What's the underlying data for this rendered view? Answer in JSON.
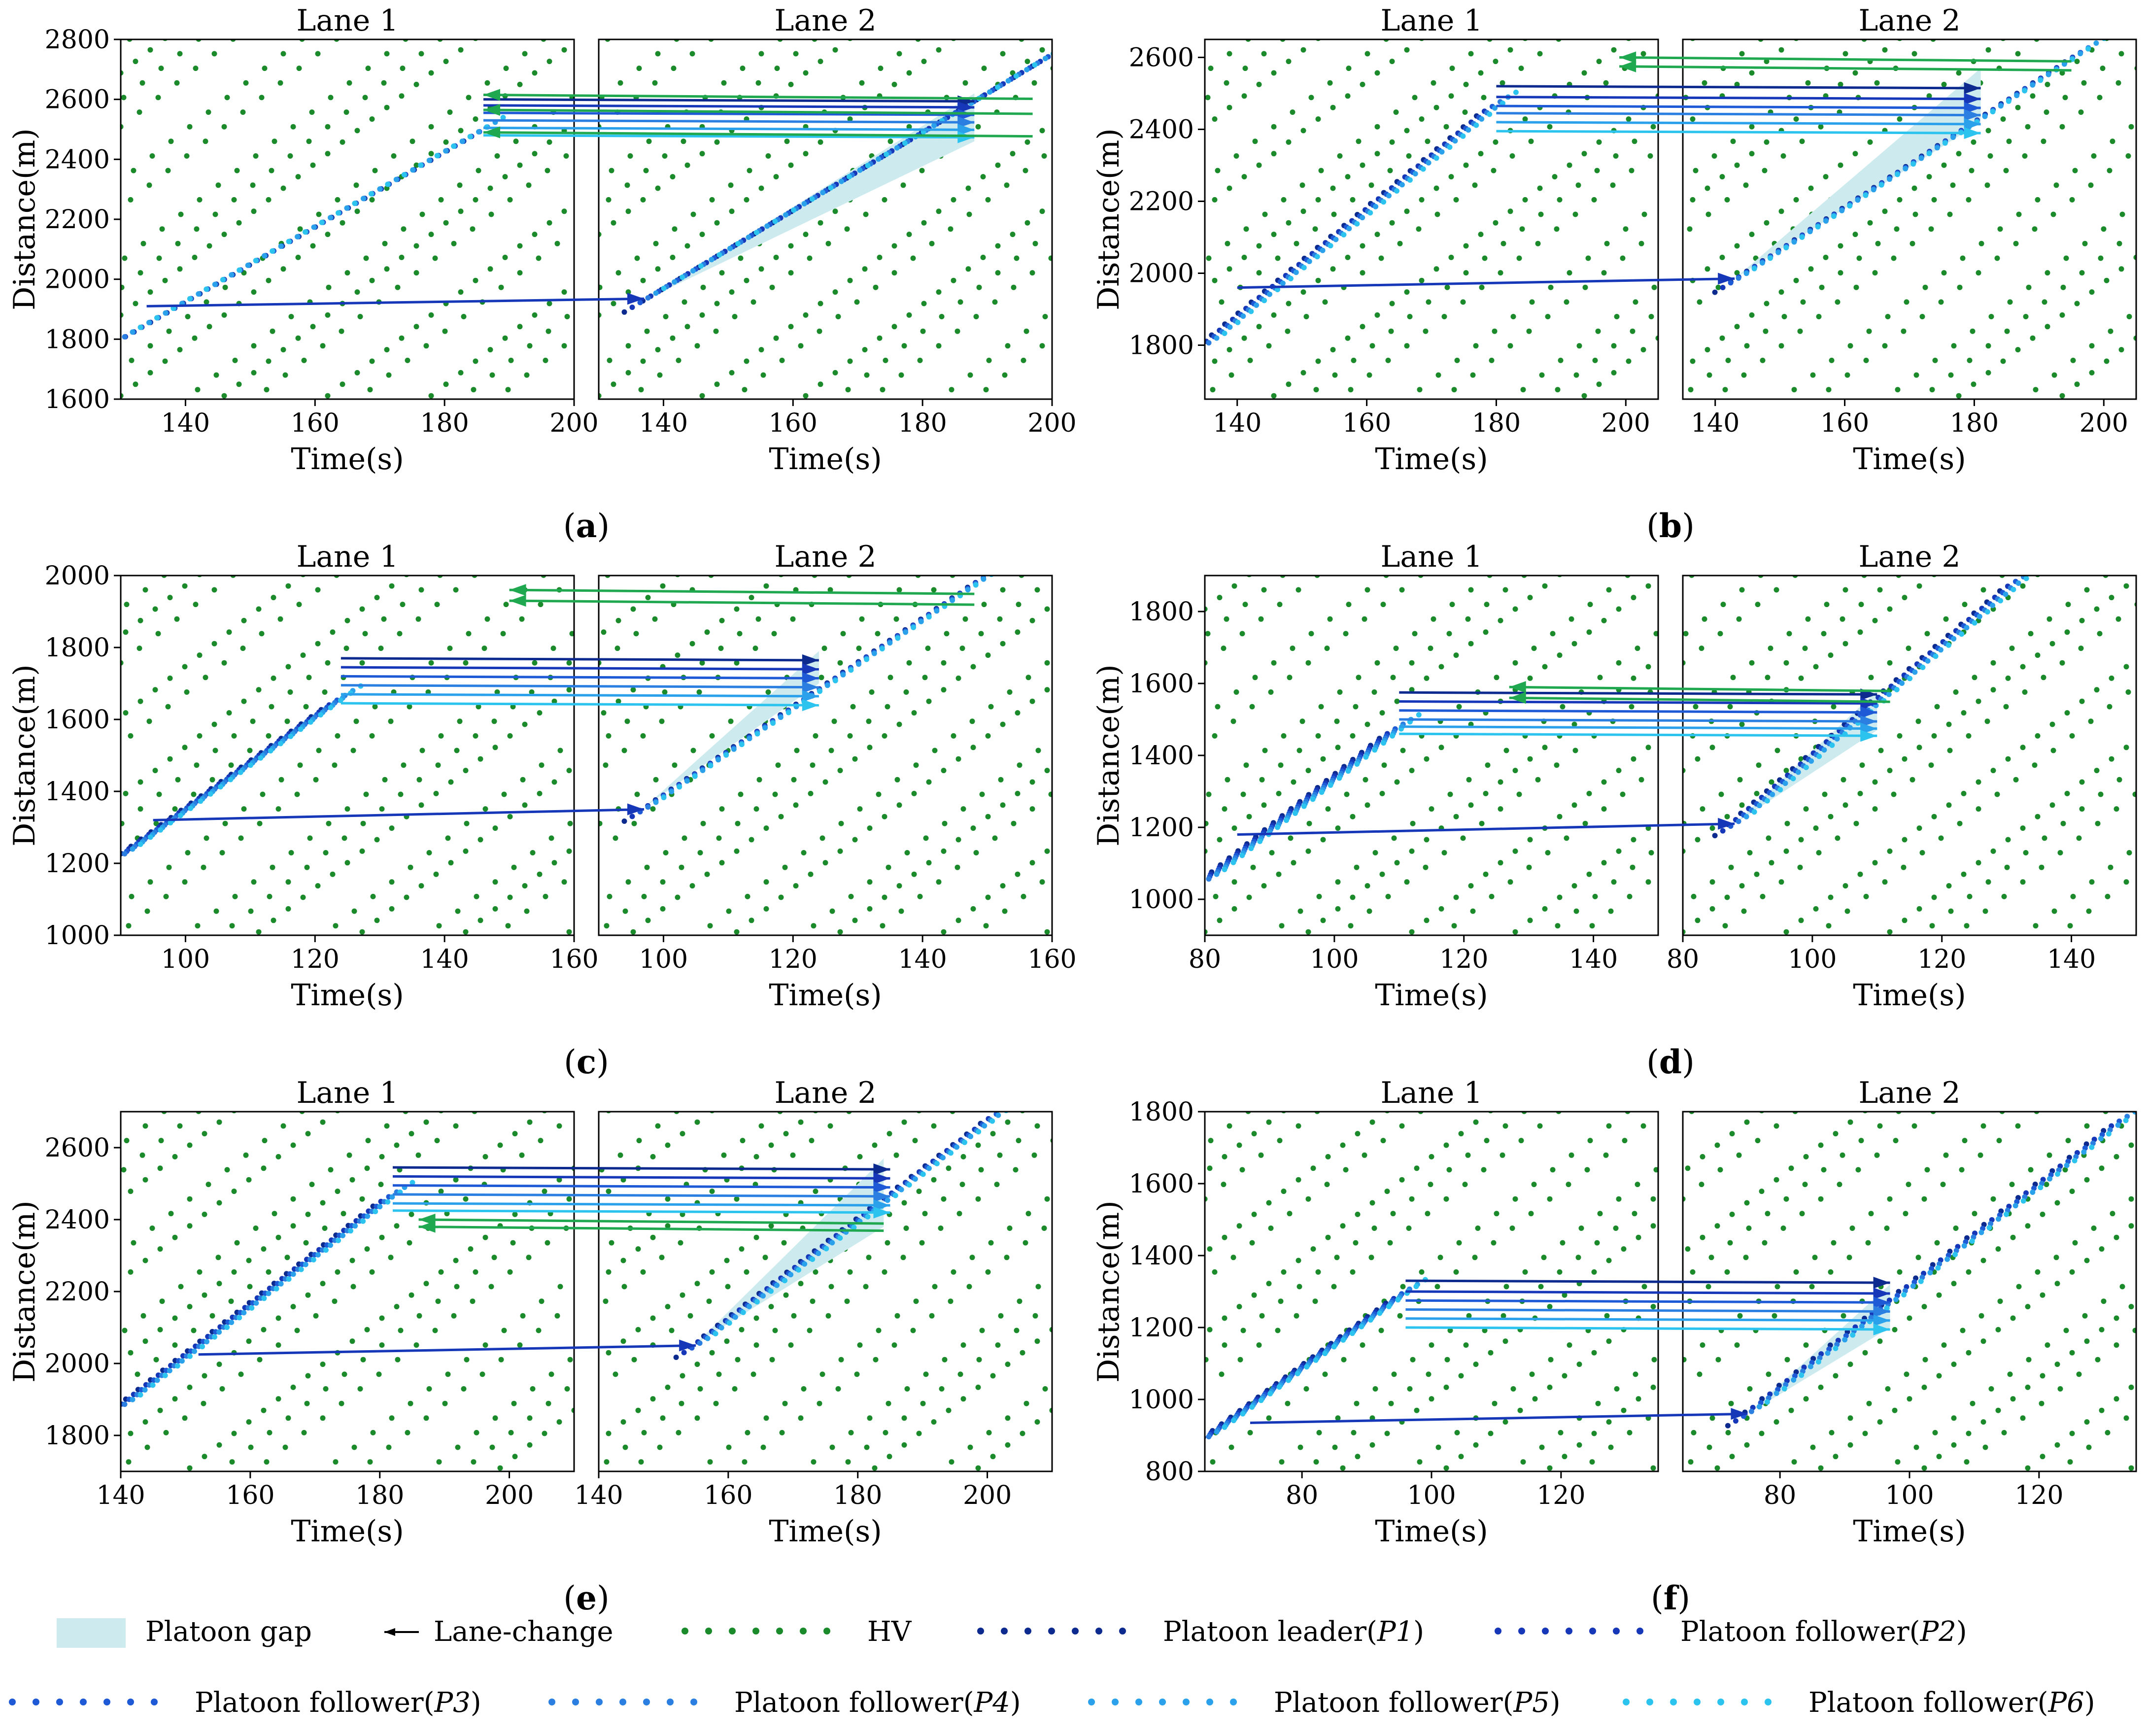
{
  "colors": {
    "hv": "#1a8a2a",
    "p1": "#0d2b8f",
    "p2": "#1537b8",
    "p3": "#1e5ad6",
    "p4": "#2a7fe0",
    "p5": "#2aa1ea",
    "p6": "#2cc4ef",
    "platoon_gap": "#cdebef",
    "lane_change_green": "#1fa84f"
  },
  "legend": [
    {
      "key": "gap",
      "label": "Platoon gap",
      "label_italic": ""
    },
    {
      "key": "lane-change",
      "label": "Lane-change",
      "label_italic": ""
    },
    {
      "key": "hv",
      "label": "HV",
      "label_italic": ""
    },
    {
      "key": "p1",
      "label": "Platoon leader(",
      "label_italic": "P1"
    },
    {
      "key": "p2",
      "label": "Platoon follower(",
      "label_italic": "P2"
    },
    {
      "key": "p3",
      "label": "Platoon follower(",
      "label_italic": "P3"
    },
    {
      "key": "p4",
      "label": "Platoon follower(",
      "label_italic": "P4"
    },
    {
      "key": "p5",
      "label": "Platoon follower(",
      "label_italic": "P5"
    },
    {
      "key": "p6",
      "label": "Platoon follower(",
      "label_italic": "P6"
    }
  ],
  "chart_data": [
    {
      "type": "scatter",
      "letter": "a",
      "ylabel": "Distance(m)",
      "xlabel": "Time(s)",
      "lane_titles": [
        "Lane 1",
        "Lane 2"
      ],
      "ylim": [
        1600,
        2800
      ],
      "yticks": [
        1600,
        1800,
        2000,
        2200,
        2400,
        2600,
        2800
      ],
      "lanes": [
        {
          "xlim": [
            130,
            200
          ],
          "xticks": [
            140,
            160,
            180,
            200
          ]
        },
        {
          "xlim": [
            130,
            200
          ],
          "xticks": [
            140,
            160,
            180,
            200
          ]
        }
      ],
      "platoon": {
        "left": {
          "t": [
            130,
            186
          ],
          "d": [
            1800,
            2500
          ]
        },
        "right": {
          "t": [
            137,
            200
          ],
          "d": [
            1930,
            2750
          ]
        }
      },
      "gap": {
        "t": [
          137,
          188,
          188
        ],
        "d": [
          1930,
          2460,
          2620
        ]
      },
      "pl_lane_change": {
        "t0": 134,
        "d0": 1910,
        "t1": 137,
        "d1": 1935
      },
      "lc_to_lane2": {
        "t0": 186,
        "t1": 188,
        "d": [
          2600,
          2580,
          2555,
          2530,
          2505,
          2480
        ]
      },
      "lc_to_lane1": {
        "t0": 197,
        "t1": 186,
        "d": [
          2615,
          2565,
          2490
        ]
      }
    },
    {
      "type": "scatter",
      "letter": "b",
      "ylabel": "Distance(m)",
      "xlabel": "Time(s)",
      "lane_titles": [
        "Lane 1",
        "Lane 2"
      ],
      "ylim": [
        1650,
        2650
      ],
      "yticks": [
        1800,
        2000,
        2200,
        2400,
        2600
      ],
      "lanes": [
        {
          "xlim": [
            135,
            205
          ],
          "xticks": [
            140,
            160,
            180,
            200
          ]
        },
        {
          "xlim": [
            135,
            205
          ],
          "xticks": [
            140,
            160,
            180,
            200
          ]
        }
      ],
      "platoon": {
        "left": {
          "t": [
            135,
            180
          ],
          "d": [
            1800,
            2470
          ]
        },
        "right": {
          "t": [
            143,
            197
          ],
          "d": [
            1980,
            2620
          ]
        }
      },
      "gap": {
        "t": [
          143,
          181,
          181
        ],
        "d": [
          1985,
          2420,
          2570
        ]
      },
      "pl_lane_change": {
        "t0": 140,
        "d0": 1960,
        "t1": 143,
        "d1": 1985
      },
      "lc_to_lane2": {
        "t0": 180,
        "t1": 181,
        "d": [
          2520,
          2490,
          2465,
          2445,
          2420,
          2395
        ]
      },
      "lc_to_lane1": {
        "t0": 195,
        "t1": 199,
        "d": [
          2575,
          2600
        ]
      }
    },
    {
      "type": "scatter",
      "letter": "c",
      "ylabel": "Distance(m)",
      "xlabel": "Time(s)",
      "lane_titles": [
        "Lane 1",
        "Lane 2"
      ],
      "ylim": [
        1000,
        2000
      ],
      "yticks": [
        1000,
        1200,
        1400,
        1600,
        1800,
        2000
      ],
      "lanes": [
        {
          "xlim": [
            90,
            160
          ],
          "xticks": [
            100,
            120,
            140,
            160
          ]
        },
        {
          "xlim": [
            90,
            160
          ],
          "xticks": [
            100,
            120,
            140,
            160
          ]
        }
      ],
      "platoon": {
        "left": {
          "t": [
            90,
            124
          ],
          "d": [
            1220,
            1660
          ]
        },
        "right": {
          "t": [
            97,
            150
          ],
          "d": [
            1350,
            2000
          ]
        }
      },
      "gap": {
        "t": [
          97,
          124,
          124
        ],
        "d": [
          1355,
          1700,
          1790
        ]
      },
      "pl_lane_change": {
        "t0": 95,
        "d0": 1320,
        "t1": 97,
        "d1": 1350
      },
      "lc_to_lane2": {
        "t0": 124,
        "t1": 124,
        "d": [
          1770,
          1745,
          1720,
          1695,
          1670,
          1645
        ]
      },
      "lc_to_lane1": {
        "t0": 148,
        "t1": 150,
        "d": [
          1930,
          1960
        ]
      }
    },
    {
      "type": "scatter",
      "letter": "d",
      "ylabel": "Distance(m)",
      "xlabel": "Time(s)",
      "lane_titles": [
        "Lane 1",
        "Lane 2"
      ],
      "ylim": [
        900,
        1900
      ],
      "yticks": [
        1000,
        1200,
        1400,
        1600,
        1800
      ],
      "lanes": [
        {
          "xlim": [
            80,
            150
          ],
          "xticks": [
            80,
            100,
            120,
            140
          ]
        },
        {
          "xlim": [
            80,
            150
          ],
          "xticks": [
            80,
            100,
            120,
            140
          ]
        }
      ],
      "platoon": {
        "left": {
          "t": [
            80,
            110
          ],
          "d": [
            1050,
            1480
          ]
        },
        "right": {
          "t": [
            88,
            132
          ],
          "d": [
            1210,
            1890
          ]
        }
      },
      "gap": {
        "t": [
          88,
          110,
          110
        ],
        "d": [
          1210,
          1470,
          1580
        ]
      },
      "pl_lane_change": {
        "t0": 85,
        "d0": 1180,
        "t1": 88,
        "d1": 1210
      },
      "lc_to_lane2": {
        "t0": 110,
        "t1": 110,
        "d": [
          1575,
          1550,
          1525,
          1500,
          1480,
          1460
        ]
      },
      "lc_to_lane1": {
        "t0": 112,
        "t1": 127,
        "d": [
          1560,
          1590
        ]
      }
    },
    {
      "type": "scatter",
      "letter": "e",
      "ylabel": "Distance(m)",
      "xlabel": "Time(s)",
      "lane_titles": [
        "Lane 1",
        "Lane 2"
      ],
      "ylim": [
        1700,
        2700
      ],
      "yticks": [
        1800,
        2000,
        2200,
        2400,
        2600
      ],
      "lanes": [
        {
          "xlim": [
            140,
            210
          ],
          "xticks": [
            140,
            160,
            180,
            200
          ]
        },
        {
          "xlim": [
            140,
            210
          ],
          "xticks": [
            140,
            160,
            180,
            200
          ]
        }
      ],
      "platoon": {
        "left": {
          "t": [
            140,
            182
          ],
          "d": [
            1880,
            2470
          ]
        },
        "right": {
          "t": [
            155,
            202
          ],
          "d": [
            2050,
            2700
          ]
        }
      },
      "gap": {
        "t": [
          155,
          184,
          184
        ],
        "d": [
          2055,
          2380,
          2570
        ]
      },
      "pl_lane_change": {
        "t0": 152,
        "d0": 2025,
        "t1": 155,
        "d1": 2050
      },
      "lc_to_lane2": {
        "t0": 182,
        "t1": 185,
        "d": [
          2545,
          2520,
          2495,
          2470,
          2445,
          2425
        ]
      },
      "lc_to_lane1": {
        "t0": 184,
        "t1": 186,
        "d": [
          2380,
          2400
        ]
      }
    },
    {
      "type": "scatter",
      "letter": "f",
      "ylabel": "Distance(m)",
      "xlabel": "Time(s)",
      "lane_titles": [
        "Lane 1",
        "Lane 2"
      ],
      "ylim": [
        800,
        1800
      ],
      "yticks": [
        800,
        1000,
        1200,
        1400,
        1600,
        1800
      ],
      "lanes": [
        {
          "xlim": [
            65,
            135
          ],
          "xticks": [
            80,
            100,
            120
          ]
        },
        {
          "xlim": [
            65,
            135
          ],
          "xticks": [
            80,
            100,
            120
          ]
        }
      ],
      "platoon": {
        "left": {
          "t": [
            65,
            96
          ],
          "d": [
            890,
            1300
          ]
        },
        "right": {
          "t": [
            75,
            133
          ],
          "d": [
            960,
            1780
          ]
        }
      },
      "gap": {
        "t": [
          75,
          97,
          97
        ],
        "d": [
          960,
          1200,
          1320
        ]
      },
      "pl_lane_change": {
        "t0": 72,
        "d0": 935,
        "t1": 75,
        "d1": 960
      },
      "lc_to_lane2": {
        "t0": 96,
        "t1": 97,
        "d": [
          1330,
          1300,
          1275,
          1250,
          1225,
          1200
        ]
      },
      "lc_to_lane1": null
    }
  ]
}
